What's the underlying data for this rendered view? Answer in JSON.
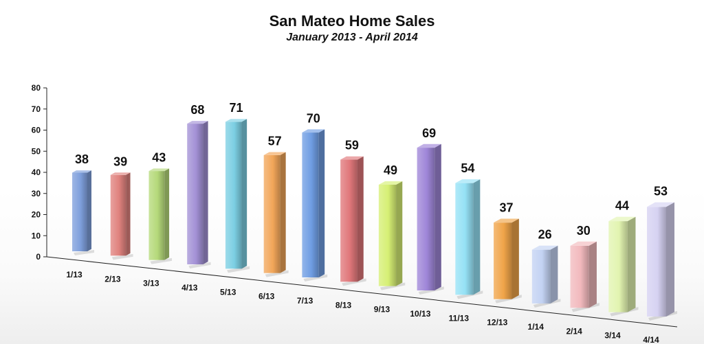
{
  "chart_data": {
    "type": "bar",
    "title": "San Mateo Home Sales",
    "subtitle": "January 2013 - April 2014",
    "categories": [
      "1/13",
      "2/13",
      "3/13",
      "4/13",
      "5/13",
      "6/13",
      "7/13",
      "8/13",
      "9/13",
      "10/13",
      "11/13",
      "12/13",
      "1/14",
      "2/14",
      "3/14",
      "4/14"
    ],
    "values": [
      38,
      39,
      43,
      68,
      71,
      57,
      70,
      59,
      49,
      69,
      54,
      37,
      26,
      30,
      44,
      53
    ],
    "colors": [
      "#7e9fdc",
      "#e0827e",
      "#b5d97a",
      "#a391d6",
      "#7ccfe3",
      "#f2a659",
      "#6f9de3",
      "#e0777a",
      "#d6ef74",
      "#9f86d8",
      "#95e1f5",
      "#f0a449",
      "#c3d2f3",
      "#f2b9bd",
      "#e2f4b0",
      "#d6d2f2"
    ],
    "ylim": [
      0,
      80
    ],
    "yticks": [
      0,
      10,
      20,
      30,
      40,
      50,
      60,
      70,
      80
    ],
    "grid": false,
    "legend": "none",
    "style": "3d-perspective"
  }
}
